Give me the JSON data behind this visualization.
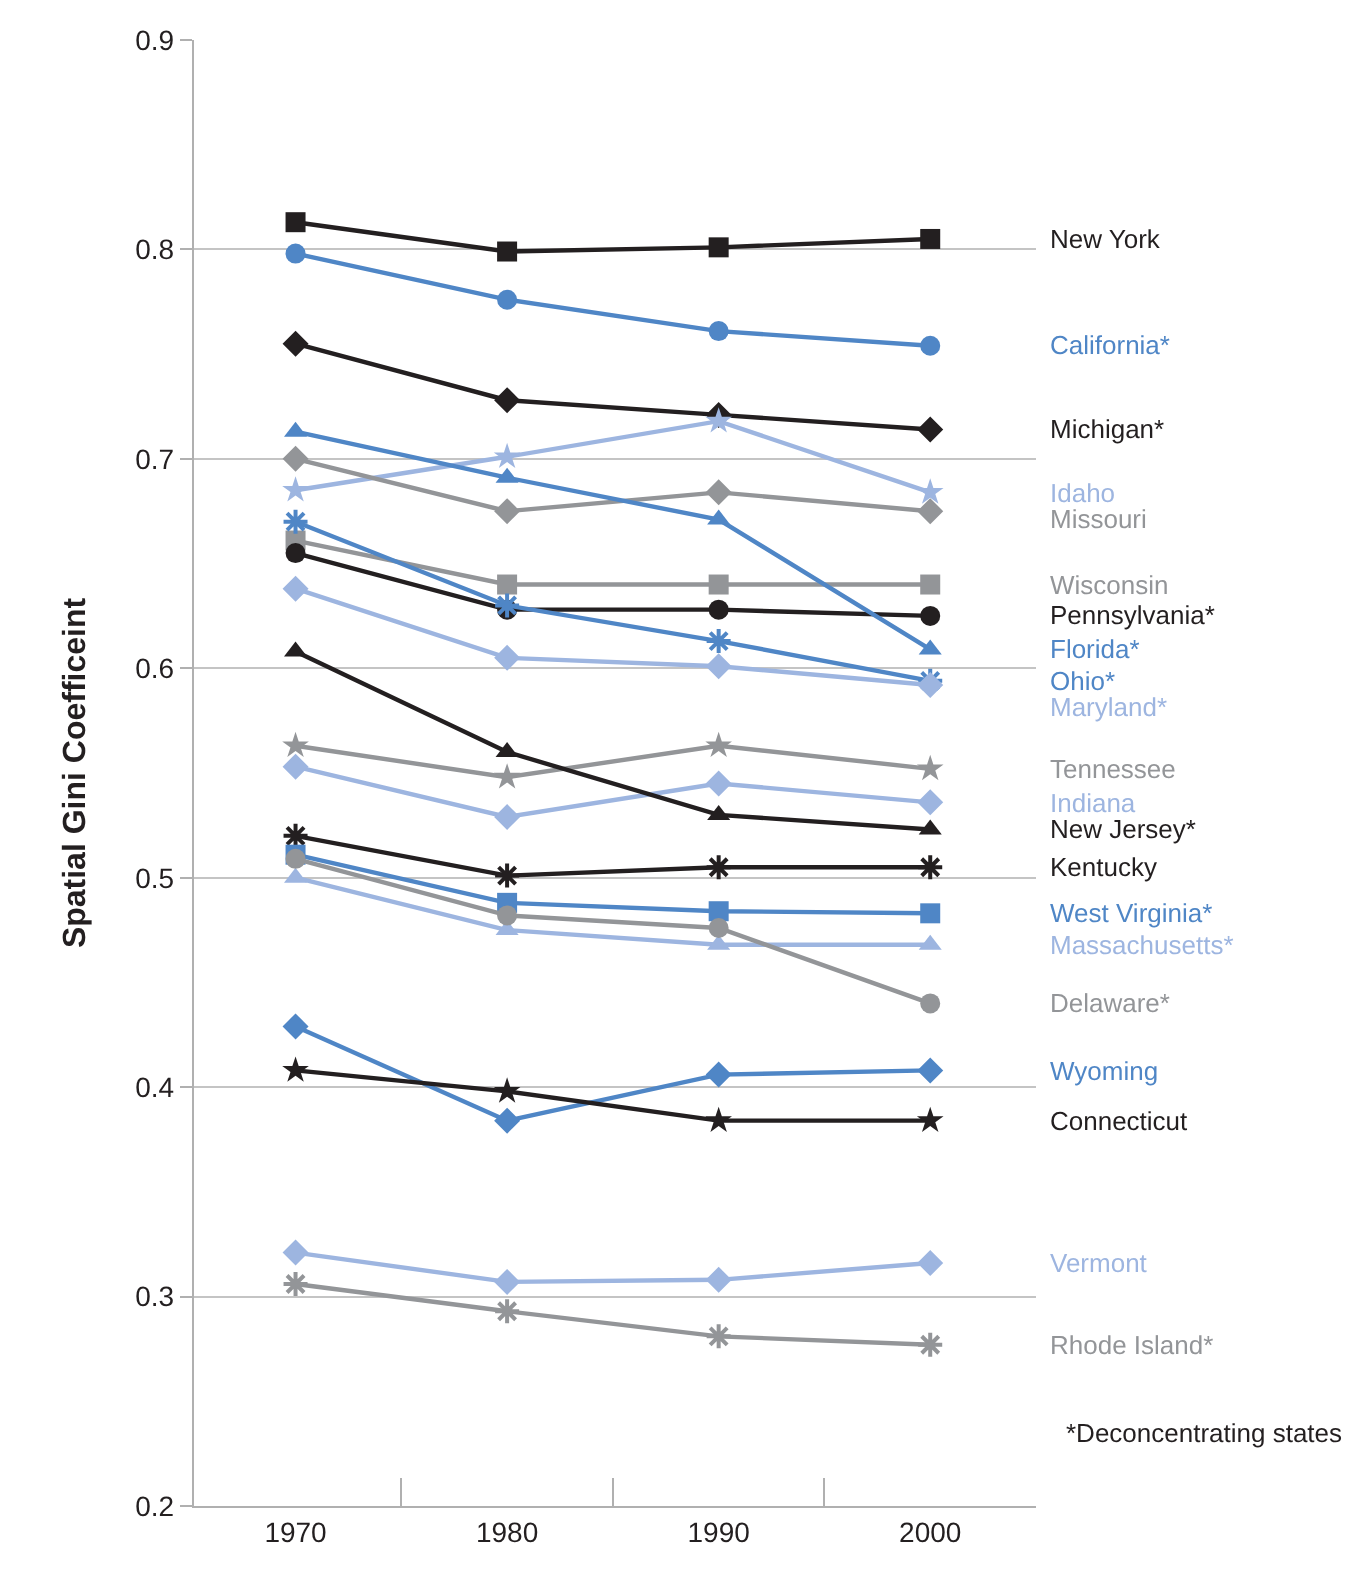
{
  "chart_data": {
    "type": "line",
    "ylabel": "Spatial Gini Coefficeint",
    "categories": [
      "1970",
      "1980",
      "1990",
      "2000"
    ],
    "ylim": [
      0.2,
      0.9
    ],
    "yticks": [
      0.2,
      0.3,
      0.4,
      0.5,
      0.6,
      0.7,
      0.8,
      0.9
    ],
    "grid": "y",
    "legend": false,
    "annotations": [
      "*Deconcentrating states"
    ],
    "series": [
      {
        "name": "New York",
        "color": "#231f20",
        "marker": "square",
        "values": [
          0.813,
          0.799,
          0.801,
          0.805
        ]
      },
      {
        "name": "California*",
        "color": "#4f86c6",
        "marker": "circle",
        "values": [
          0.798,
          0.776,
          0.761,
          0.754
        ]
      },
      {
        "name": "Michigan*",
        "color": "#231f20",
        "marker": "diamond",
        "values": [
          0.755,
          0.728,
          0.721,
          0.714
        ]
      },
      {
        "name": "Idaho",
        "color": "#9db5e0",
        "marker": "star",
        "values": [
          0.685,
          0.701,
          0.718,
          0.684
        ]
      },
      {
        "name": "Missouri",
        "color": "#939598",
        "marker": "diamond",
        "values": [
          0.7,
          0.675,
          0.684,
          0.675
        ]
      },
      {
        "name": "Wisconsin",
        "color": "#939598",
        "marker": "square",
        "values": [
          0.661,
          0.64,
          0.64,
          0.64
        ]
      },
      {
        "name": "Pennsylvania*",
        "color": "#231f20",
        "marker": "circle",
        "values": [
          0.655,
          0.628,
          0.628,
          0.625
        ]
      },
      {
        "name": "Florida*",
        "color": "#4f86c6",
        "marker": "triangle",
        "values": [
          0.713,
          0.691,
          0.671,
          0.609
        ]
      },
      {
        "name": "Ohio*",
        "color": "#4f86c6",
        "marker": "cross",
        "values": [
          0.67,
          0.63,
          0.613,
          0.594
        ]
      },
      {
        "name": "Maryland*",
        "color": "#9db5e0",
        "marker": "diamond",
        "values": [
          0.638,
          0.605,
          0.601,
          0.592
        ]
      },
      {
        "name": "Tennessee",
        "color": "#939598",
        "marker": "star",
        "values": [
          0.563,
          0.548,
          0.563,
          0.552
        ]
      },
      {
        "name": "Indiana",
        "color": "#9db5e0",
        "marker": "diamond",
        "values": [
          0.553,
          0.529,
          0.545,
          0.536
        ]
      },
      {
        "name": "New Jersey*",
        "color": "#231f20",
        "marker": "triangle",
        "values": [
          0.608,
          0.56,
          0.53,
          0.523
        ]
      },
      {
        "name": "Kentucky",
        "color": "#231f20",
        "marker": "cross",
        "values": [
          0.52,
          0.501,
          0.505,
          0.505
        ]
      },
      {
        "name": "West Virginia*",
        "color": "#4f86c6",
        "marker": "square",
        "values": [
          0.511,
          0.488,
          0.484,
          0.483
        ]
      },
      {
        "name": "Massachusetts*",
        "color": "#9db5e0",
        "marker": "triangle",
        "values": [
          0.5,
          0.475,
          0.468,
          0.468
        ]
      },
      {
        "name": "Delaware*",
        "color": "#939598",
        "marker": "circle",
        "values": [
          0.509,
          0.482,
          0.476,
          0.44
        ]
      },
      {
        "name": "Wyoming",
        "color": "#4f86c6",
        "marker": "diamond",
        "values": [
          0.429,
          0.384,
          0.406,
          0.408
        ]
      },
      {
        "name": "Connecticut",
        "color": "#231f20",
        "marker": "star",
        "values": [
          0.408,
          0.398,
          0.384,
          0.384
        ]
      },
      {
        "name": "Vermont",
        "color": "#9db5e0",
        "marker": "diamond",
        "values": [
          0.321,
          0.307,
          0.308,
          0.316
        ]
      },
      {
        "name": "Rhode Island*",
        "color": "#939598",
        "marker": "cross",
        "values": [
          0.306,
          0.293,
          0.281,
          0.277
        ]
      }
    ]
  }
}
